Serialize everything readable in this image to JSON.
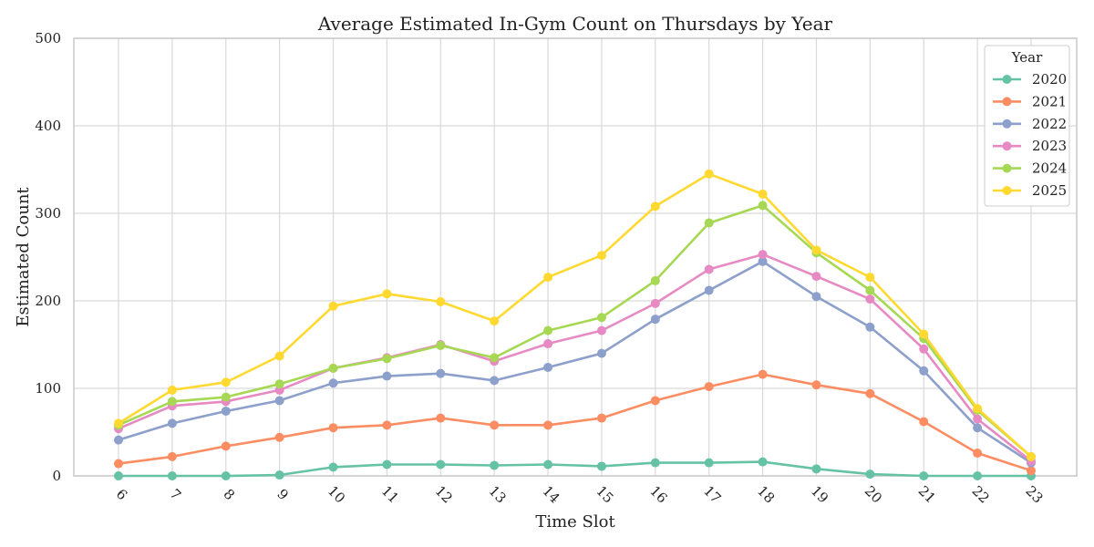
{
  "chart_data": {
    "type": "line",
    "title": "Average Estimated In-Gym Count on Thursdays by Year",
    "xlabel": "Time Slot",
    "ylabel": "Estimated Count",
    "x": [
      "6",
      "7",
      "8",
      "9",
      "10",
      "11",
      "12",
      "13",
      "14",
      "15",
      "16",
      "17",
      "18",
      "19",
      "20",
      "21",
      "22",
      "23"
    ],
    "ylim": [
      0,
      500
    ],
    "yticks": [
      "0",
      "100",
      "200",
      "300",
      "400",
      "500"
    ],
    "grid": true,
    "legend": {
      "title": "Year",
      "position": "top-right"
    },
    "series": [
      {
        "name": "2020",
        "color": "#66c2a5",
        "values": [
          0,
          0,
          0,
          1,
          10,
          13,
          13,
          12,
          13,
          11,
          15,
          15,
          16,
          8,
          2,
          0,
          0,
          0
        ]
      },
      {
        "name": "2021",
        "color": "#fc8d62",
        "values": [
          14,
          22,
          34,
          44,
          55,
          58,
          66,
          58,
          58,
          66,
          86,
          102,
          116,
          104,
          94,
          62,
          26,
          6
        ]
      },
      {
        "name": "2022",
        "color": "#8da0cb",
        "values": [
          41,
          60,
          74,
          86,
          106,
          114,
          117,
          109,
          124,
          140,
          179,
          212,
          245,
          205,
          170,
          120,
          55,
          15
        ]
      },
      {
        "name": "2023",
        "color": "#e78ac3",
        "values": [
          54,
          80,
          85,
          98,
          123,
          135,
          150,
          131,
          151,
          166,
          197,
          236,
          253,
          228,
          202,
          145,
          65,
          17
        ]
      },
      {
        "name": "2024",
        "color": "#a6d854",
        "values": [
          58,
          85,
          90,
          105,
          123,
          134,
          149,
          135,
          166,
          181,
          223,
          289,
          309,
          255,
          212,
          157,
          75,
          22
        ]
      },
      {
        "name": "2025",
        "color": "#ffd92f",
        "values": [
          60,
          98,
          107,
          137,
          194,
          208,
          199,
          177,
          227,
          252,
          308,
          345,
          322,
          258,
          227,
          162,
          77,
          22
        ]
      }
    ]
  }
}
